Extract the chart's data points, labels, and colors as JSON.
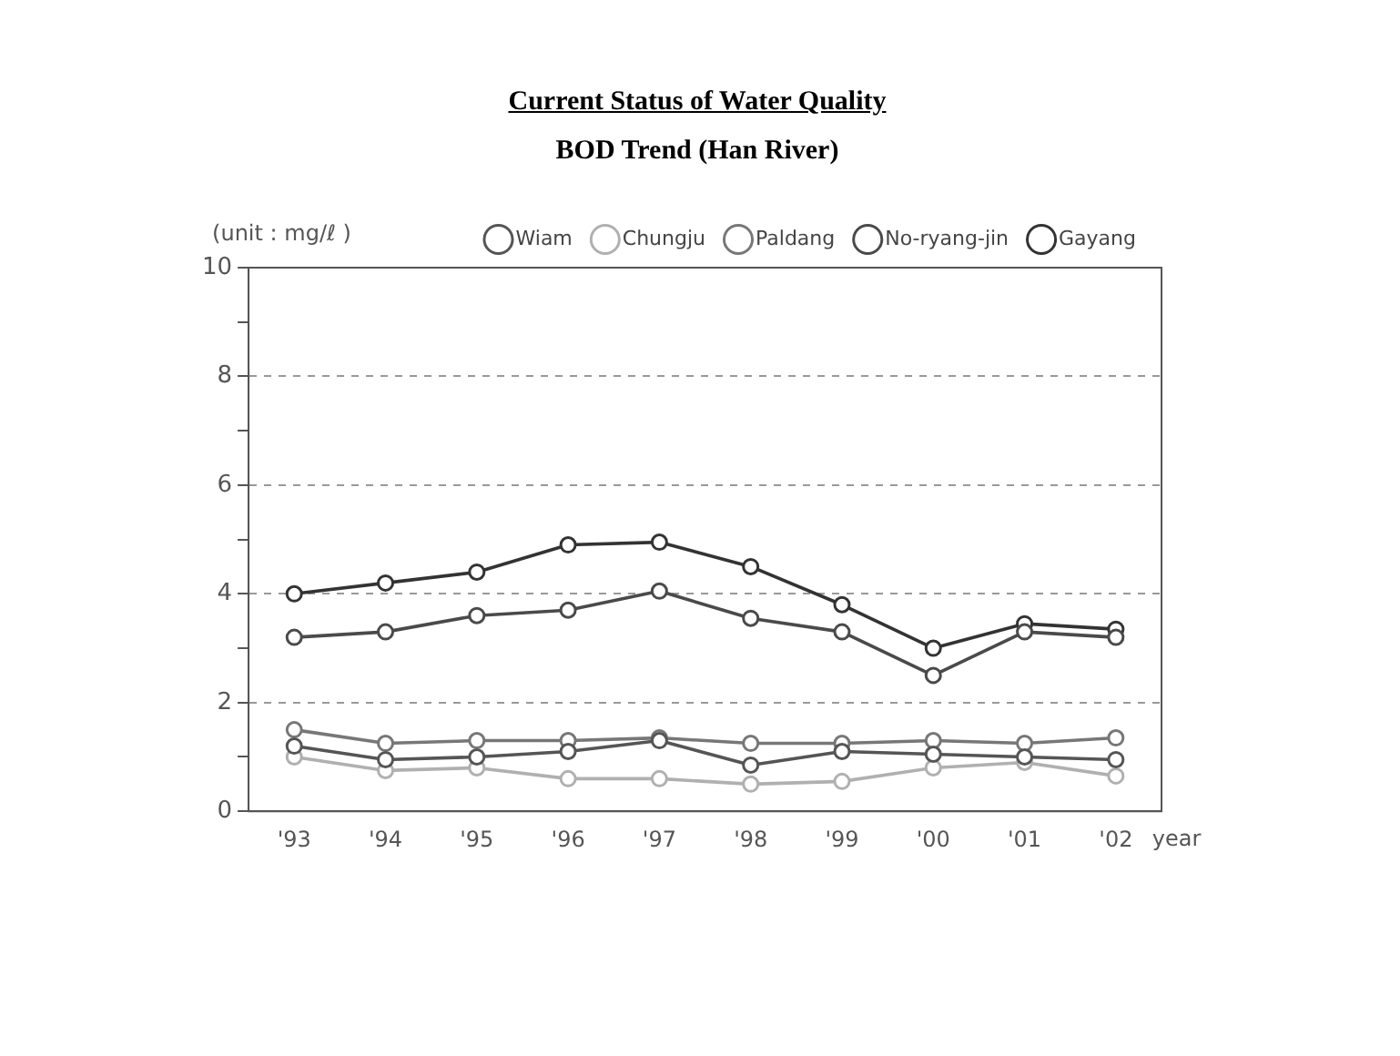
{
  "chart_data": {
    "type": "line",
    "title": "Current Status of Water Quality",
    "subtitle": "BOD Trend (Han River)",
    "ylabel": "(unit : mg/ℓ )",
    "xlabel": "year",
    "categories": [
      "'93",
      "'94",
      "'95",
      "'96",
      "'97",
      "'98",
      "'99",
      "'00",
      "'01",
      "'02"
    ],
    "series": [
      {
        "name": "Wiam",
        "color": "#555555",
        "values": [
          1.2,
          0.95,
          1.0,
          1.1,
          1.3,
          0.85,
          1.1,
          1.05,
          1.0,
          0.95
        ]
      },
      {
        "name": "Chungju",
        "color": "#b0b0b0",
        "values": [
          1.0,
          0.75,
          0.8,
          0.6,
          0.6,
          0.5,
          0.55,
          0.8,
          0.9,
          0.65
        ]
      },
      {
        "name": "Paldang",
        "color": "#777777",
        "values": [
          1.5,
          1.25,
          1.3,
          1.3,
          1.35,
          1.25,
          1.25,
          1.3,
          1.25,
          1.35
        ]
      },
      {
        "name": "No-ryang-jin",
        "color": "#4a4a4a",
        "values": [
          3.2,
          3.3,
          3.6,
          3.7,
          4.05,
          3.55,
          3.3,
          2.5,
          3.3,
          3.2
        ]
      },
      {
        "name": "Gayang",
        "color": "#333333",
        "values": [
          4.0,
          4.2,
          4.4,
          4.9,
          4.95,
          4.5,
          3.8,
          3.0,
          3.45,
          3.35
        ]
      }
    ],
    "ylim": [
      0,
      10
    ],
    "yticks": [
      0,
      {
        "value": 1,
        "label": null
      },
      2,
      {
        "value": 3,
        "label": null
      },
      4,
      {
        "value": 5,
        "label": null
      },
      6,
      {
        "value": 7,
        "label": null
      },
      8,
      {
        "value": 9,
        "label": null
      },
      10
    ],
    "grid": "y",
    "legend": "top right",
    "marker": "circle",
    "line_style": "solid"
  }
}
